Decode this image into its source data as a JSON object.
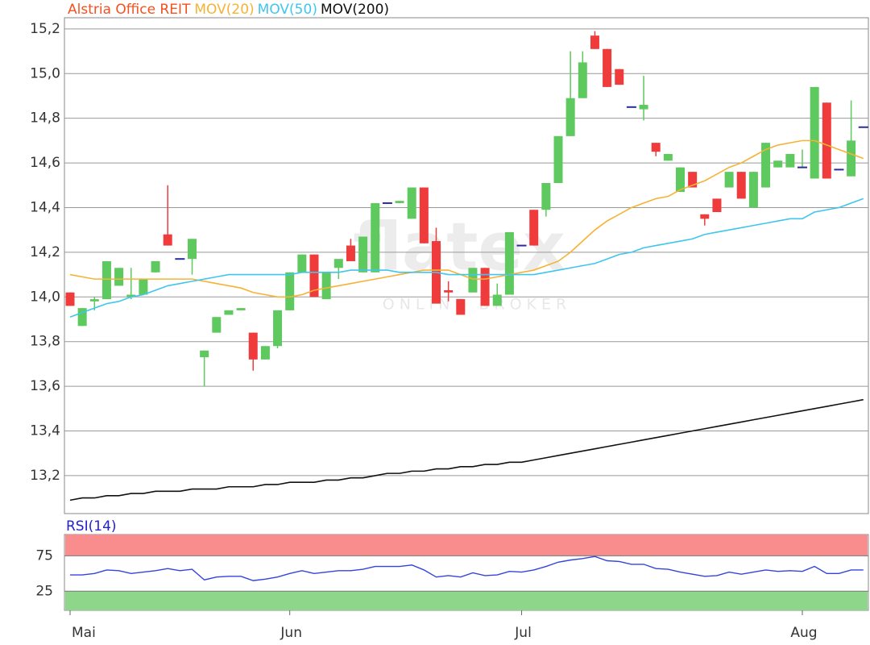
{
  "chart_data": [
    {
      "type": "candlestick",
      "title": "Alstria Office REIT",
      "title_color": "#f4511e",
      "categories": [
        "Mai",
        null,
        null,
        null,
        null,
        null,
        null,
        null,
        null,
        null,
        null,
        null,
        null,
        null,
        null,
        null,
        null,
        null,
        "Jun",
        null,
        null,
        null,
        null,
        null,
        null,
        null,
        null,
        null,
        null,
        null,
        null,
        null,
        null,
        null,
        null,
        null,
        null,
        "Jul",
        null,
        null,
        null,
        null,
        null,
        null,
        null,
        null,
        null,
        null,
        null,
        null,
        null,
        null,
        null,
        null,
        null,
        null,
        null,
        null,
        null,
        null,
        "Aug",
        null,
        null,
        null,
        null,
        null
      ],
      "open": [
        14.02,
        13.87,
        13.98,
        13.99,
        14.05,
        14.0,
        14.01,
        14.11,
        14.28,
        14.17,
        14.17,
        13.73,
        13.84,
        13.92,
        13.94,
        13.84,
        13.72,
        13.78,
        13.94,
        14.11,
        14.19,
        13.99,
        14.13,
        14.23,
        14.11,
        14.11,
        14.42,
        14.42,
        14.35,
        14.49,
        14.25,
        14.03,
        13.99,
        14.02,
        14.13,
        13.96,
        14.01,
        14.23,
        14.39,
        14.39,
        14.51,
        14.72,
        14.89,
        15.17,
        15.11,
        15.02,
        14.85,
        14.84,
        14.69,
        14.61,
        14.47,
        14.56,
        14.37,
        14.44,
        14.49,
        14.56,
        14.4,
        14.49,
        14.58,
        14.58,
        14.58,
        14.53,
        14.87,
        14.57,
        14.54,
        14.76
      ],
      "high": [
        14.02,
        13.95,
        14.0,
        14.16,
        14.13,
        14.13,
        14.08,
        14.16,
        14.5,
        14.17,
        14.26,
        13.76,
        13.91,
        13.94,
        13.95,
        13.84,
        13.78,
        13.94,
        14.11,
        14.19,
        14.19,
        14.11,
        14.17,
        14.26,
        14.27,
        14.42,
        14.42,
        14.43,
        14.49,
        14.49,
        14.31,
        14.07,
        13.99,
        14.13,
        14.13,
        14.06,
        14.29,
        14.23,
        14.39,
        14.51,
        14.72,
        15.1,
        15.1,
        15.19,
        15.11,
        15.02,
        14.85,
        14.99,
        14.69,
        14.64,
        14.58,
        14.56,
        14.37,
        14.44,
        14.56,
        14.56,
        14.56,
        14.69,
        14.61,
        14.64,
        14.66,
        14.94,
        14.87,
        14.57,
        14.88,
        14.76
      ],
      "low": [
        13.96,
        13.87,
        13.94,
        13.99,
        14.05,
        13.99,
        14.01,
        14.11,
        14.23,
        14.17,
        14.1,
        13.6,
        13.84,
        13.92,
        13.94,
        13.67,
        13.72,
        13.77,
        13.94,
        14.11,
        14.0,
        13.99,
        14.08,
        14.16,
        14.11,
        14.11,
        14.42,
        14.42,
        14.35,
        14.24,
        13.97,
        13.98,
        13.92,
        14.02,
        13.96,
        13.96,
        14.01,
        14.23,
        14.23,
        14.36,
        14.51,
        14.72,
        14.89,
        15.11,
        14.94,
        14.95,
        14.85,
        14.79,
        14.63,
        14.61,
        14.47,
        14.49,
        14.32,
        14.38,
        14.49,
        14.44,
        14.4,
        14.49,
        14.58,
        14.58,
        14.58,
        14.53,
        14.53,
        14.57,
        14.54,
        14.76
      ],
      "close": [
        13.96,
        13.95,
        13.99,
        14.16,
        14.13,
        14.01,
        14.08,
        14.16,
        14.23,
        14.17,
        14.26,
        13.76,
        13.91,
        13.94,
        13.95,
        13.72,
        13.78,
        13.94,
        14.11,
        14.19,
        14.0,
        14.11,
        14.17,
        14.16,
        14.27,
        14.42,
        14.42,
        14.43,
        14.49,
        14.24,
        13.97,
        14.02,
        13.92,
        14.13,
        13.96,
        14.01,
        14.29,
        14.23,
        14.23,
        14.51,
        14.72,
        14.89,
        15.05,
        15.11,
        14.94,
        14.95,
        14.85,
        14.86,
        14.65,
        14.64,
        14.58,
        14.49,
        14.35,
        14.38,
        14.56,
        14.44,
        14.56,
        14.69,
        14.61,
        14.64,
        14.58,
        14.94,
        14.53,
        14.57,
        14.7,
        14.76
      ],
      "up_color": "#5ec95e",
      "down_color": "#ef3b3b",
      "flat_color": "#2b2b9e",
      "series": [
        {
          "name": "MOV(20)",
          "color": "#f5b335",
          "values": [
            14.1,
            14.09,
            14.08,
            14.08,
            14.08,
            14.08,
            14.08,
            14.08,
            14.08,
            14.08,
            14.08,
            14.07,
            14.06,
            14.05,
            14.04,
            14.02,
            14.01,
            14.0,
            14.0,
            14.01,
            14.03,
            14.04,
            14.05,
            14.06,
            14.07,
            14.08,
            14.09,
            14.1,
            14.11,
            14.12,
            14.12,
            14.12,
            14.1,
            14.08,
            14.08,
            14.09,
            14.1,
            14.11,
            14.12,
            14.14,
            14.16,
            14.2,
            14.25,
            14.3,
            14.34,
            14.37,
            14.4,
            14.42,
            14.44,
            14.45,
            14.48,
            14.5,
            14.52,
            14.55,
            14.58,
            14.6,
            14.63,
            14.66,
            14.68,
            14.69,
            14.7,
            14.7,
            14.68,
            14.66,
            14.64,
            14.62
          ]
        },
        {
          "name": "MOV(50)",
          "color": "#3fc6ee",
          "values": [
            13.91,
            13.93,
            13.95,
            13.97,
            13.98,
            14.0,
            14.01,
            14.03,
            14.05,
            14.06,
            14.07,
            14.08,
            14.09,
            14.1,
            14.1,
            14.1,
            14.1,
            14.1,
            14.1,
            14.11,
            14.11,
            14.11,
            14.11,
            14.12,
            14.12,
            14.12,
            14.12,
            14.11,
            14.11,
            14.11,
            14.11,
            14.1,
            14.1,
            14.1,
            14.1,
            14.1,
            14.1,
            14.1,
            14.1,
            14.11,
            14.12,
            14.13,
            14.14,
            14.15,
            14.17,
            14.19,
            14.2,
            14.22,
            14.23,
            14.24,
            14.25,
            14.26,
            14.28,
            14.29,
            14.3,
            14.31,
            14.32,
            14.33,
            14.34,
            14.35,
            14.35,
            14.38,
            14.39,
            14.4,
            14.42,
            14.44
          ]
        },
        {
          "name": "MOV(200)",
          "color": "#111111",
          "values": [
            13.09,
            13.1,
            13.1,
            13.11,
            13.11,
            13.12,
            13.12,
            13.13,
            13.13,
            13.13,
            13.14,
            13.14,
            13.14,
            13.15,
            13.15,
            13.15,
            13.16,
            13.16,
            13.17,
            13.17,
            13.17,
            13.18,
            13.18,
            13.19,
            13.19,
            13.2,
            13.21,
            13.21,
            13.22,
            13.22,
            13.23,
            13.23,
            13.24,
            13.24,
            13.25,
            13.25,
            13.26,
            13.26,
            13.27,
            13.28,
            13.29,
            13.3,
            13.31,
            13.32,
            13.33,
            13.34,
            13.35,
            13.36,
            13.37,
            13.38,
            13.39,
            13.4,
            13.41,
            13.42,
            13.43,
            13.44,
            13.45,
            13.46,
            13.47,
            13.48,
            13.49,
            13.5,
            13.51,
            13.52,
            13.53,
            13.54
          ]
        }
      ],
      "ylim": [
        13.03,
        15.25
      ],
      "yticks": [
        {
          "value": 13.2,
          "label": "13,2"
        },
        {
          "value": 13.4,
          "label": "13,4"
        },
        {
          "value": 13.6,
          "label": "13,6"
        },
        {
          "value": 13.8,
          "label": "13,8"
        },
        {
          "value": 14.0,
          "label": "14,0"
        },
        {
          "value": 14.2,
          "label": "14,2"
        },
        {
          "value": 14.4,
          "label": "14,4"
        },
        {
          "value": 14.6,
          "label": "14,6"
        },
        {
          "value": 14.8,
          "label": "14,8"
        },
        {
          "value": 15.0,
          "label": "15,0"
        },
        {
          "value": 15.2,
          "label": "15,2"
        }
      ],
      "grid": true,
      "watermark": "flatex",
      "watermark_sub": "ONLINE BROKER"
    },
    {
      "type": "line",
      "title": "RSI(14)",
      "title_color": "#2222cc",
      "series": [
        {
          "name": "RSI(14)",
          "color": "#3344dd",
          "values": [
            48,
            48,
            50,
            55,
            54,
            50,
            52,
            54,
            57,
            54,
            56,
            41,
            45,
            46,
            46,
            40,
            42,
            45,
            50,
            54,
            50,
            52,
            54,
            54,
            56,
            60,
            60,
            60,
            62,
            55,
            45,
            47,
            45,
            51,
            47,
            48,
            53,
            52,
            55,
            60,
            66,
            69,
            71,
            74,
            68,
            67,
            63,
            63,
            57,
            56,
            52,
            49,
            46,
            47,
            52,
            49,
            52,
            55,
            53,
            54,
            53,
            60,
            50,
            50,
            55,
            55
          ]
        }
      ],
      "ylim": [
        -2,
        105
      ],
      "yticks": [
        25,
        75
      ],
      "upper_band_color": "#f98c8c",
      "lower_band_color": "#8ed68a"
    }
  ]
}
